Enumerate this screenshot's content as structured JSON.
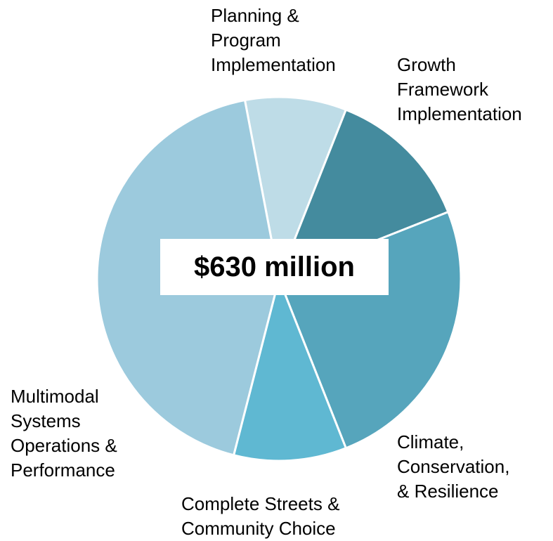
{
  "chart_data": {
    "type": "pie",
    "center_label": "$630 million",
    "categories": [
      "Planning & Program Implementation",
      "Growth Framework Implementation",
      "Climate, Conservation, & Resilience",
      "Complete Streets & Community Choice",
      "Multimodal Systems Operations & Performance"
    ],
    "values": [
      9,
      13,
      25,
      10,
      43
    ],
    "colors": [
      "#bedce7",
      "#448b9e",
      "#56a5bc",
      "#5fb8d2",
      "#9ccadd"
    ]
  }
}
